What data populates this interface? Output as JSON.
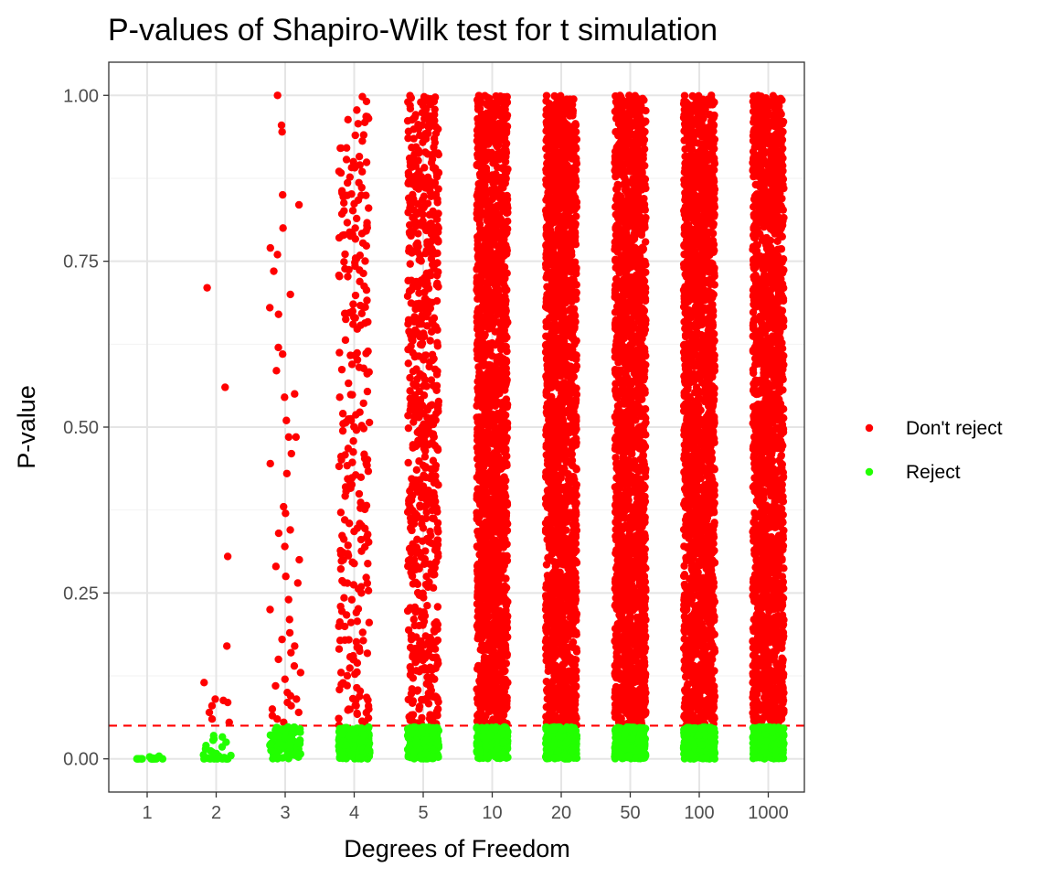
{
  "chart_data": {
    "type": "scatter",
    "title": "P-values of Shapiro-Wilk test for t simulation",
    "xlabel": "Degrees of Freedom",
    "ylabel": "P-value",
    "categories": [
      "1",
      "2",
      "3",
      "4",
      "5",
      "10",
      "20",
      "50",
      "100",
      "1000"
    ],
    "y_ticks": [
      "0.00",
      "0.25",
      "0.50",
      "0.75",
      "1.00"
    ],
    "ylim": [
      -0.05,
      1.05
    ],
    "threshold": {
      "value": 0.05,
      "style": "dashed",
      "color": "#ff0000"
    },
    "grid": true,
    "legend": {
      "position": "right",
      "entries": [
        {
          "label": "Don't reject",
          "color": "#ff0000"
        },
        {
          "label": "Reject",
          "color": "#22ff00"
        }
      ]
    },
    "series": [
      {
        "category": "1",
        "dont_reject": [],
        "reject": [
          0.0,
          0.0,
          0.0,
          0.0,
          0.001,
          0.0,
          0.0,
          0.004,
          0.0,
          0.002,
          0.0,
          0.0,
          0.0,
          0.0,
          0.003,
          0.0
        ]
      },
      {
        "category": "2",
        "dont_reject": [
          0.71,
          0.56,
          0.305,
          0.17,
          0.115,
          0.09,
          0.088,
          0.08,
          0.07,
          0.06,
          0.055,
          0.085
        ],
        "reject": [
          0.035,
          0.03,
          0.025,
          0.02,
          0.015,
          0.012,
          0.01,
          0.008,
          0.005,
          0.003,
          0.002,
          0.001,
          0.0,
          0.0,
          0.0,
          0.0,
          0.0,
          0.0,
          0.0,
          0.0,
          0.004,
          0.006,
          0.018,
          0.028,
          0.033
        ]
      },
      {
        "category": "3",
        "dont_reject": [
          1.0,
          0.955,
          0.945,
          0.85,
          0.835,
          0.8,
          0.77,
          0.76,
          0.735,
          0.7,
          0.68,
          0.67,
          0.62,
          0.61,
          0.585,
          0.55,
          0.545,
          0.51,
          0.485,
          0.485,
          0.46,
          0.445,
          0.43,
          0.38,
          0.37,
          0.345,
          0.34,
          0.32,
          0.3,
          0.29,
          0.275,
          0.265,
          0.24,
          0.225,
          0.21,
          0.19,
          0.18,
          0.17,
          0.16,
          0.15,
          0.14,
          0.13,
          0.12,
          0.11,
          0.1,
          0.095,
          0.09,
          0.085,
          0.08,
          0.075,
          0.07,
          0.065,
          0.06,
          0.055
        ]
      },
      {
        "category": "4",
        "dont_reject": []
      }
    ]
  }
}
